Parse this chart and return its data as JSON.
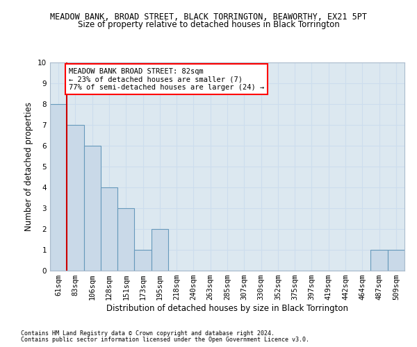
{
  "title1": "MEADOW BANK, BROAD STREET, BLACK TORRINGTON, BEAWORTHY, EX21 5PT",
  "title2": "Size of property relative to detached houses in Black Torrington",
  "xlabel": "Distribution of detached houses by size in Black Torrington",
  "ylabel": "Number of detached properties",
  "footnote1": "Contains HM Land Registry data © Crown copyright and database right 2024.",
  "footnote2": "Contains public sector information licensed under the Open Government Licence v3.0.",
  "bar_labels": [
    "61sqm",
    "83sqm",
    "106sqm",
    "128sqm",
    "151sqm",
    "173sqm",
    "195sqm",
    "218sqm",
    "240sqm",
    "263sqm",
    "285sqm",
    "307sqm",
    "330sqm",
    "352sqm",
    "375sqm",
    "397sqm",
    "419sqm",
    "442sqm",
    "464sqm",
    "487sqm",
    "509sqm"
  ],
  "bar_values": [
    8,
    7,
    6,
    4,
    3,
    1,
    2,
    0,
    0,
    0,
    0,
    0,
    0,
    0,
    0,
    0,
    0,
    0,
    0,
    1,
    1
  ],
  "bar_color": "#c9d9e8",
  "bar_edgecolor": "#6699bb",
  "ylim": [
    0,
    10
  ],
  "yticks": [
    0,
    1,
    2,
    3,
    4,
    5,
    6,
    7,
    8,
    9,
    10
  ],
  "vline_color": "#cc0000",
  "annotation_box_text": "MEADOW BANK BROAD STREET: 82sqm\n← 23% of detached houses are smaller (7)\n77% of semi-detached houses are larger (24) →",
  "grid_color": "#ccddee",
  "bg_color": "#dce8f0",
  "title1_fontsize": 8.5,
  "title2_fontsize": 8.5,
  "xlabel_fontsize": 8.5,
  "ylabel_fontsize": 8.5,
  "tick_fontsize": 7.5,
  "annot_fontsize": 7.5,
  "footnote_fontsize": 6.0
}
